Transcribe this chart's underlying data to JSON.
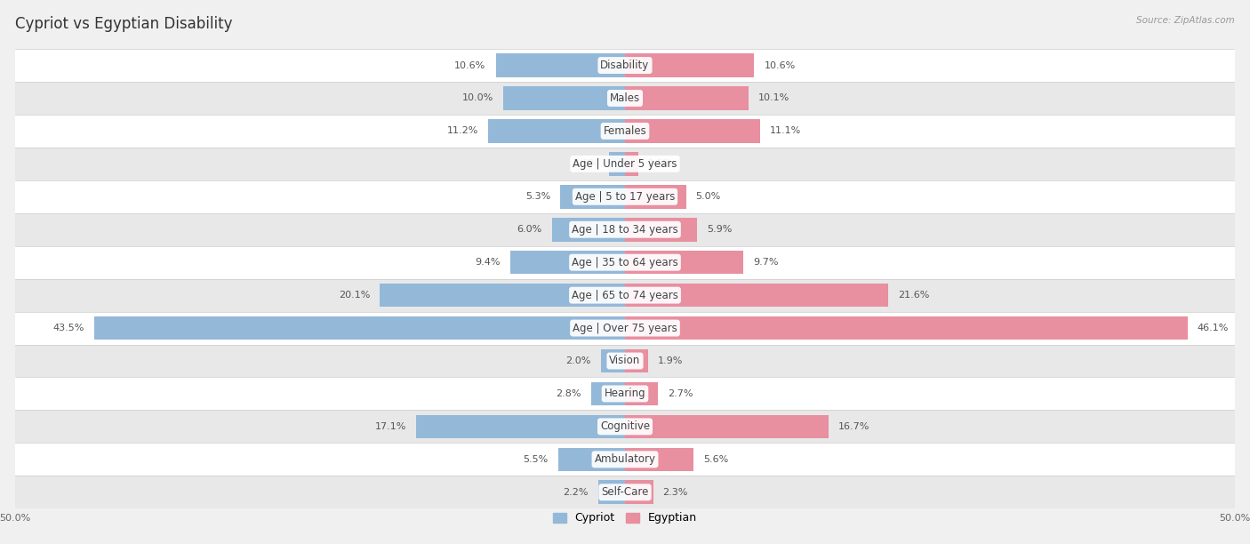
{
  "title": "Cypriot vs Egyptian Disability",
  "source": "Source: ZipAtlas.com",
  "categories": [
    "Disability",
    "Males",
    "Females",
    "Age | Under 5 years",
    "Age | 5 to 17 years",
    "Age | 18 to 34 years",
    "Age | 35 to 64 years",
    "Age | 65 to 74 years",
    "Age | Over 75 years",
    "Vision",
    "Hearing",
    "Cognitive",
    "Ambulatory",
    "Self-Care"
  ],
  "cypriot_values": [
    10.6,
    10.0,
    11.2,
    1.3,
    5.3,
    6.0,
    9.4,
    20.1,
    43.5,
    2.0,
    2.8,
    17.1,
    5.5,
    2.2
  ],
  "egyptian_values": [
    10.6,
    10.1,
    11.1,
    1.1,
    5.0,
    5.9,
    9.7,
    21.6,
    46.1,
    1.9,
    2.7,
    16.7,
    5.6,
    2.3
  ],
  "cypriot_color": "#94b8d8",
  "egyptian_color": "#e88fa0",
  "axis_limit": 50.0,
  "fig_bg": "#f0f0f0",
  "row_bg_even": "#ffffff",
  "row_bg_odd": "#e8e8e8",
  "title_fontsize": 12,
  "label_fontsize": 8.5,
  "value_fontsize": 8.0,
  "legend_labels": [
    "Cypriot",
    "Egyptian"
  ]
}
